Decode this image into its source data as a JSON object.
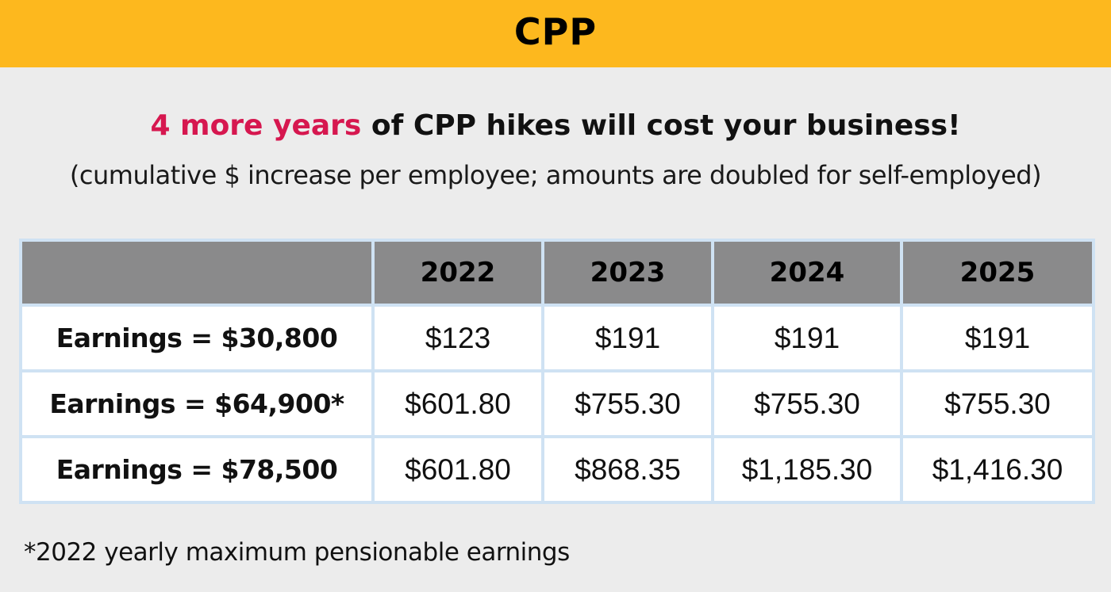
{
  "banner": {
    "title": "CPP"
  },
  "headline": {
    "accent": "4 more years",
    "rest": " of CPP hikes will cost your business!"
  },
  "subhead": "(cumulative $ increase per employee; amounts are doubled for self-employed)",
  "table": {
    "corner": "",
    "years": [
      "2022",
      "2023",
      "2024",
      "2025"
    ],
    "rows": [
      {
        "label": "Earnings = $30,800",
        "values": [
          "$123",
          "$191",
          "$191",
          "$191"
        ]
      },
      {
        "label": "Earnings = $64,900*",
        "values": [
          "$601.80",
          "$755.30",
          "$755.30",
          "$755.30"
        ]
      },
      {
        "label": "Earnings = $78,500",
        "values": [
          "$601.80",
          "$868.35",
          "$1,185.30",
          "$1,416.30"
        ]
      }
    ]
  },
  "footnote": "*2022 yearly maximum pensionable earnings",
  "colors": {
    "banner": "#fdb81e",
    "accent": "#d6174f",
    "header_cell": "#8a8a8b",
    "grid_line": "#cfe2f3",
    "background": "#ececec"
  }
}
